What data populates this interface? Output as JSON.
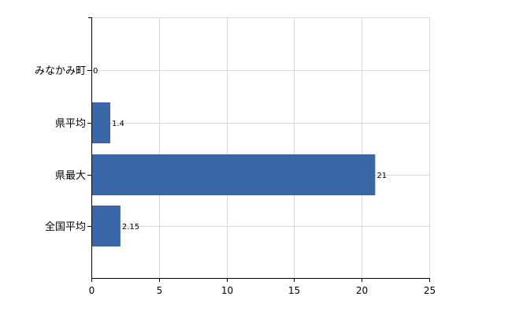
{
  "chart_data": {
    "type": "bar",
    "orientation": "horizontal",
    "categories": [
      "みなかみ町",
      "県平均",
      "県最大",
      "全国平均"
    ],
    "values": [
      0,
      1.4,
      21,
      2.15
    ],
    "value_labels": [
      "0",
      "1.4",
      "21",
      "2.15"
    ],
    "xlim": [
      0,
      25
    ],
    "xticks": [
      "0",
      "5",
      "10",
      "15",
      "20",
      "25"
    ],
    "grid": true,
    "bar_color": "#3a67a7",
    "title": "",
    "xlabel": "",
    "ylabel": ""
  }
}
